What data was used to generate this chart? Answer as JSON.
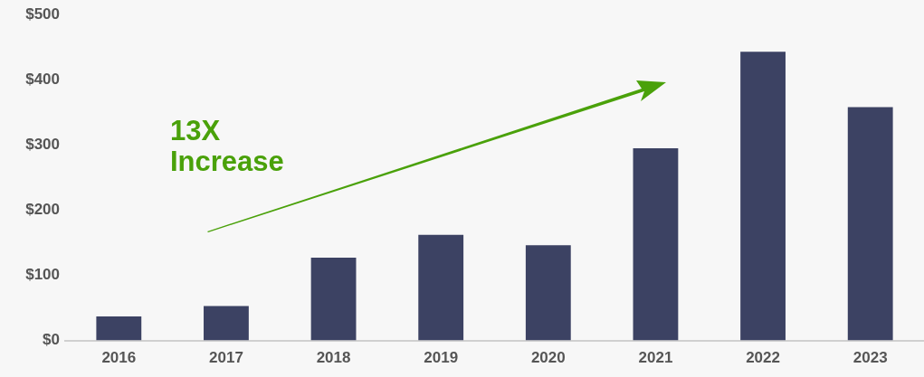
{
  "chart_data": {
    "type": "bar",
    "categories": [
      "2016",
      "2017",
      "2018",
      "2019",
      "2020",
      "2021",
      "2022",
      "2023"
    ],
    "values": [
      37,
      53,
      127,
      162,
      146,
      295,
      443,
      358
    ],
    "color": "#3c4263",
    "ylim": [
      0,
      500
    ],
    "yticks": [
      {
        "value": 0,
        "label": "$0"
      },
      {
        "value": 100,
        "label": "$100"
      },
      {
        "value": 200,
        "label": "$200"
      },
      {
        "value": 300,
        "label": "$300"
      },
      {
        "value": 400,
        "label": "$400"
      },
      {
        "value": 500,
        "label": "$500"
      }
    ],
    "grid": false,
    "legend": false,
    "annotations": [
      "13X Increase"
    ]
  }
}
